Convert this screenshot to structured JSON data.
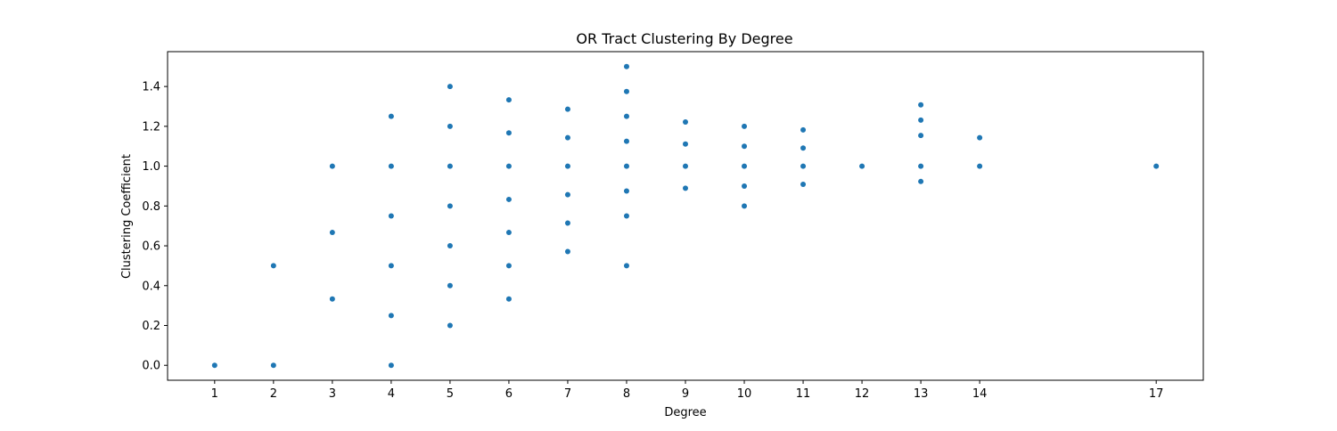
{
  "chart_data": {
    "type": "scatter",
    "title": "OR Tract Clustering By Degree",
    "xlabel": "Degree",
    "ylabel": "Clustering Coefficient",
    "xlim": [
      0.2,
      17.8
    ],
    "ylim": [
      -0.075,
      1.575
    ],
    "x_ticks": [
      1,
      2,
      3,
      4,
      5,
      6,
      7,
      8,
      9,
      10,
      11,
      12,
      13,
      14,
      17
    ],
    "y_ticks": [
      0.0,
      0.2,
      0.4,
      0.6,
      0.8,
      1.0,
      1.2,
      1.4
    ],
    "y_tick_labels": [
      "0.0",
      "0.2",
      "0.4",
      "0.6",
      "0.8",
      "1.0",
      "1.2",
      "1.4"
    ],
    "grid": false,
    "marker_color": "#1f77b4",
    "series": [
      {
        "points": [
          [
            1,
            0.0
          ],
          [
            2,
            0.0
          ],
          [
            2,
            0.5
          ],
          [
            3,
            0.333
          ],
          [
            3,
            0.667
          ],
          [
            3,
            1.0
          ],
          [
            4,
            0.0
          ],
          [
            4,
            0.25
          ],
          [
            4,
            0.5
          ],
          [
            4,
            0.75
          ],
          [
            4,
            1.0
          ],
          [
            4,
            1.25
          ],
          [
            5,
            0.2
          ],
          [
            5,
            0.4
          ],
          [
            5,
            0.6
          ],
          [
            5,
            0.8
          ],
          [
            5,
            1.0
          ],
          [
            5,
            1.2
          ],
          [
            5,
            1.4
          ],
          [
            6,
            0.333
          ],
          [
            6,
            0.5
          ],
          [
            6,
            0.667
          ],
          [
            6,
            0.833
          ],
          [
            6,
            1.0
          ],
          [
            6,
            1.167
          ],
          [
            6,
            1.333
          ],
          [
            7,
            0.571
          ],
          [
            7,
            0.714
          ],
          [
            7,
            0.857
          ],
          [
            7,
            1.0
          ],
          [
            7,
            1.143
          ],
          [
            7,
            1.286
          ],
          [
            8,
            0.5
          ],
          [
            8,
            0.75
          ],
          [
            8,
            0.875
          ],
          [
            8,
            1.0
          ],
          [
            8,
            1.125
          ],
          [
            8,
            1.25
          ],
          [
            8,
            1.375
          ],
          [
            8,
            1.5
          ],
          [
            9,
            0.889
          ],
          [
            9,
            1.0
          ],
          [
            9,
            1.111
          ],
          [
            9,
            1.222
          ],
          [
            10,
            0.8
          ],
          [
            10,
            0.9
          ],
          [
            10,
            1.0
          ],
          [
            10,
            1.1
          ],
          [
            10,
            1.2
          ],
          [
            11,
            0.909
          ],
          [
            11,
            1.0
          ],
          [
            11,
            1.091
          ],
          [
            11,
            1.182
          ],
          [
            12,
            1.0
          ],
          [
            13,
            0.923
          ],
          [
            13,
            1.0
          ],
          [
            13,
            1.154
          ],
          [
            13,
            1.231
          ],
          [
            13,
            1.308
          ],
          [
            14,
            1.0
          ],
          [
            14,
            1.143
          ],
          [
            17,
            1.0
          ]
        ]
      }
    ]
  }
}
